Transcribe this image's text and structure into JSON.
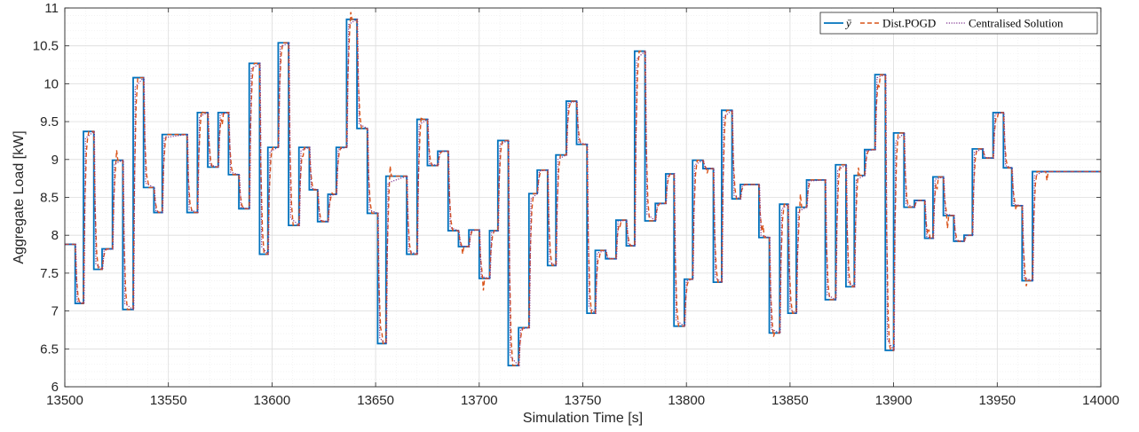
{
  "chart_data": {
    "type": "line",
    "xlabel": "Simulation Time [s]",
    "ylabel": "Aggregate Load [kW]",
    "xlim": [
      13500,
      14000
    ],
    "ylim": [
      6,
      11
    ],
    "xticks": [
      13500,
      13550,
      13600,
      13650,
      13700,
      13750,
      13800,
      13850,
      13900,
      13950,
      14000
    ],
    "yticks": [
      6,
      6.5,
      7,
      7.5,
      8,
      8.5,
      9,
      9.5,
      10,
      10.5,
      11
    ],
    "xtick_labels": [
      "13500",
      "13550",
      "13600",
      "13650",
      "13700",
      "13750",
      "13800",
      "13850",
      "13900",
      "13950",
      "14000"
    ],
    "ytick_labels": [
      "6",
      "6.5",
      "7",
      "7.5",
      "8",
      "8.5",
      "9",
      "9.5",
      "10",
      "10.5",
      "11"
    ],
    "grid": true,
    "minor_grid": true,
    "legend_position": "top-right",
    "segments": [
      [
        13500,
        7.88
      ],
      [
        13505,
        7.1
      ],
      [
        13509,
        9.37
      ],
      [
        13514,
        7.55
      ],
      [
        13518,
        7.82
      ],
      [
        13523,
        8.99
      ],
      [
        13528,
        7.02
      ],
      [
        13533,
        10.08
      ],
      [
        13538,
        8.63
      ],
      [
        13543,
        8.3
      ],
      [
        13547,
        9.33
      ],
      [
        13559,
        8.3
      ],
      [
        13564,
        9.62
      ],
      [
        13569,
        8.9
      ],
      [
        13574,
        9.62
      ],
      [
        13579,
        8.8
      ],
      [
        13584,
        8.35
      ],
      [
        13589,
        10.27
      ],
      [
        13594,
        7.75
      ],
      [
        13598,
        9.16
      ],
      [
        13603,
        10.54
      ],
      [
        13608,
        8.13
      ],
      [
        13613,
        9.16
      ],
      [
        13618,
        8.6
      ],
      [
        13622,
        8.18
      ],
      [
        13627,
        8.54
      ],
      [
        13631,
        9.16
      ],
      [
        13636,
        10.85
      ],
      [
        13641,
        9.41
      ],
      [
        13646,
        8.29
      ],
      [
        13651,
        6.57
      ],
      [
        13655,
        8.78
      ],
      [
        13665,
        7.75
      ],
      [
        13670,
        9.53
      ],
      [
        13675,
        8.92
      ],
      [
        13680,
        9.11
      ],
      [
        13685,
        8.06
      ],
      [
        13690,
        7.85
      ],
      [
        13695,
        8.07
      ],
      [
        13700,
        7.43
      ],
      [
        13705,
        8.06
      ],
      [
        13709,
        9.25
      ],
      [
        13714,
        6.28
      ],
      [
        13719,
        6.78
      ],
      [
        13724,
        8.55
      ],
      [
        13728,
        8.86
      ],
      [
        13733,
        7.6
      ],
      [
        13737,
        9.06
      ],
      [
        13742,
        9.77
      ],
      [
        13747,
        9.2
      ],
      [
        13752,
        6.97
      ],
      [
        13756,
        7.8
      ],
      [
        13761,
        7.69
      ],
      [
        13766,
        8.2
      ],
      [
        13771,
        7.86
      ],
      [
        13775,
        10.43
      ],
      [
        13780,
        8.19
      ],
      [
        13785,
        8.42
      ],
      [
        13790,
        8.81
      ],
      [
        13794,
        6.8
      ],
      [
        13799,
        7.42
      ],
      [
        13803,
        8.99
      ],
      [
        13808,
        8.88
      ],
      [
        13813,
        7.38
      ],
      [
        13817,
        9.65
      ],
      [
        13822,
        8.48
      ],
      [
        13826,
        8.67
      ],
      [
        13835,
        7.97
      ],
      [
        13840,
        6.71
      ],
      [
        13845,
        8.41
      ],
      [
        13849,
        6.97
      ],
      [
        13853,
        8.37
      ],
      [
        13858,
        8.73
      ],
      [
        13867,
        7.15
      ],
      [
        13872,
        8.93
      ],
      [
        13877,
        7.32
      ],
      [
        13881,
        8.79
      ],
      [
        13886,
        9.13
      ],
      [
        13891,
        10.12
      ],
      [
        13896,
        6.48
      ],
      [
        13900,
        9.35
      ],
      [
        13905,
        8.37
      ],
      [
        13910,
        8.46
      ],
      [
        13915,
        7.96
      ],
      [
        13919,
        8.77
      ],
      [
        13924,
        8.26
      ],
      [
        13929,
        7.92
      ],
      [
        13934,
        8.0
      ],
      [
        13938,
        9.14
      ],
      [
        13943,
        9.02
      ],
      [
        13948,
        9.62
      ],
      [
        13953,
        8.89
      ],
      [
        13957,
        8.39
      ],
      [
        13962,
        7.4
      ],
      [
        13967,
        8.84
      ],
      [
        13972,
        8.84
      ]
    ],
    "series": [
      {
        "name": "ȳ",
        "color": "#0072BD",
        "style": "solid",
        "values": []
      },
      {
        "name": "Dist.POGD",
        "color": "#D95319",
        "style": "dashed",
        "values": []
      },
      {
        "name": "Centralised Solution",
        "color": "#7E2F8E",
        "style": "dotted",
        "values": []
      }
    ]
  }
}
